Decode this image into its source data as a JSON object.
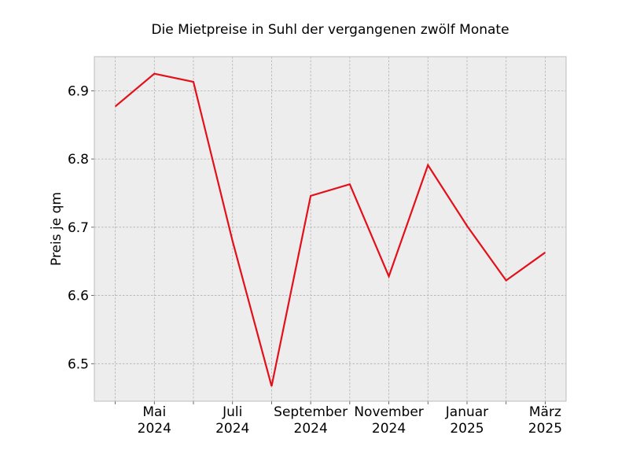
{
  "chart_data": {
    "type": "line",
    "title": "Die Mietpreise in Suhl der vergangenen zwölf Monate",
    "xlabel": "",
    "ylabel": "Preis je qm",
    "x": [
      "2024-04",
      "2024-05",
      "2024-06",
      "2024-07",
      "2024-08",
      "2024-09",
      "2024-10",
      "2024-11",
      "2024-12",
      "2025-01",
      "2025-02",
      "2025-03"
    ],
    "series": [
      {
        "values": [
          6.877,
          6.925,
          6.913,
          6.68,
          6.467,
          6.746,
          6.763,
          6.628,
          6.791,
          6.702,
          6.622,
          6.663
        ],
        "color": "#e3101a"
      }
    ],
    "ylim": [
      6.445,
      6.95
    ],
    "yticks": [
      "6.5",
      "6.6",
      "6.7",
      "6.8",
      "6.9"
    ],
    "xtick_labels": [
      {
        "x": "2024-05",
        "line1": "Mai",
        "line2": "2024"
      },
      {
        "x": "2024-07",
        "line1": "Juli",
        "line2": "2024"
      },
      {
        "x": "2024-09",
        "line1": "September",
        "line2": "2024"
      },
      {
        "x": "2024-11",
        "line1": "November",
        "line2": "2024"
      },
      {
        "x": "2025-01",
        "line1": "Januar",
        "line2": "2025"
      },
      {
        "x": "2025-03",
        "line1": "März",
        "line2": "2025"
      }
    ],
    "grid": true,
    "background": "#ededed",
    "gridColor": "#b0b0b0"
  }
}
